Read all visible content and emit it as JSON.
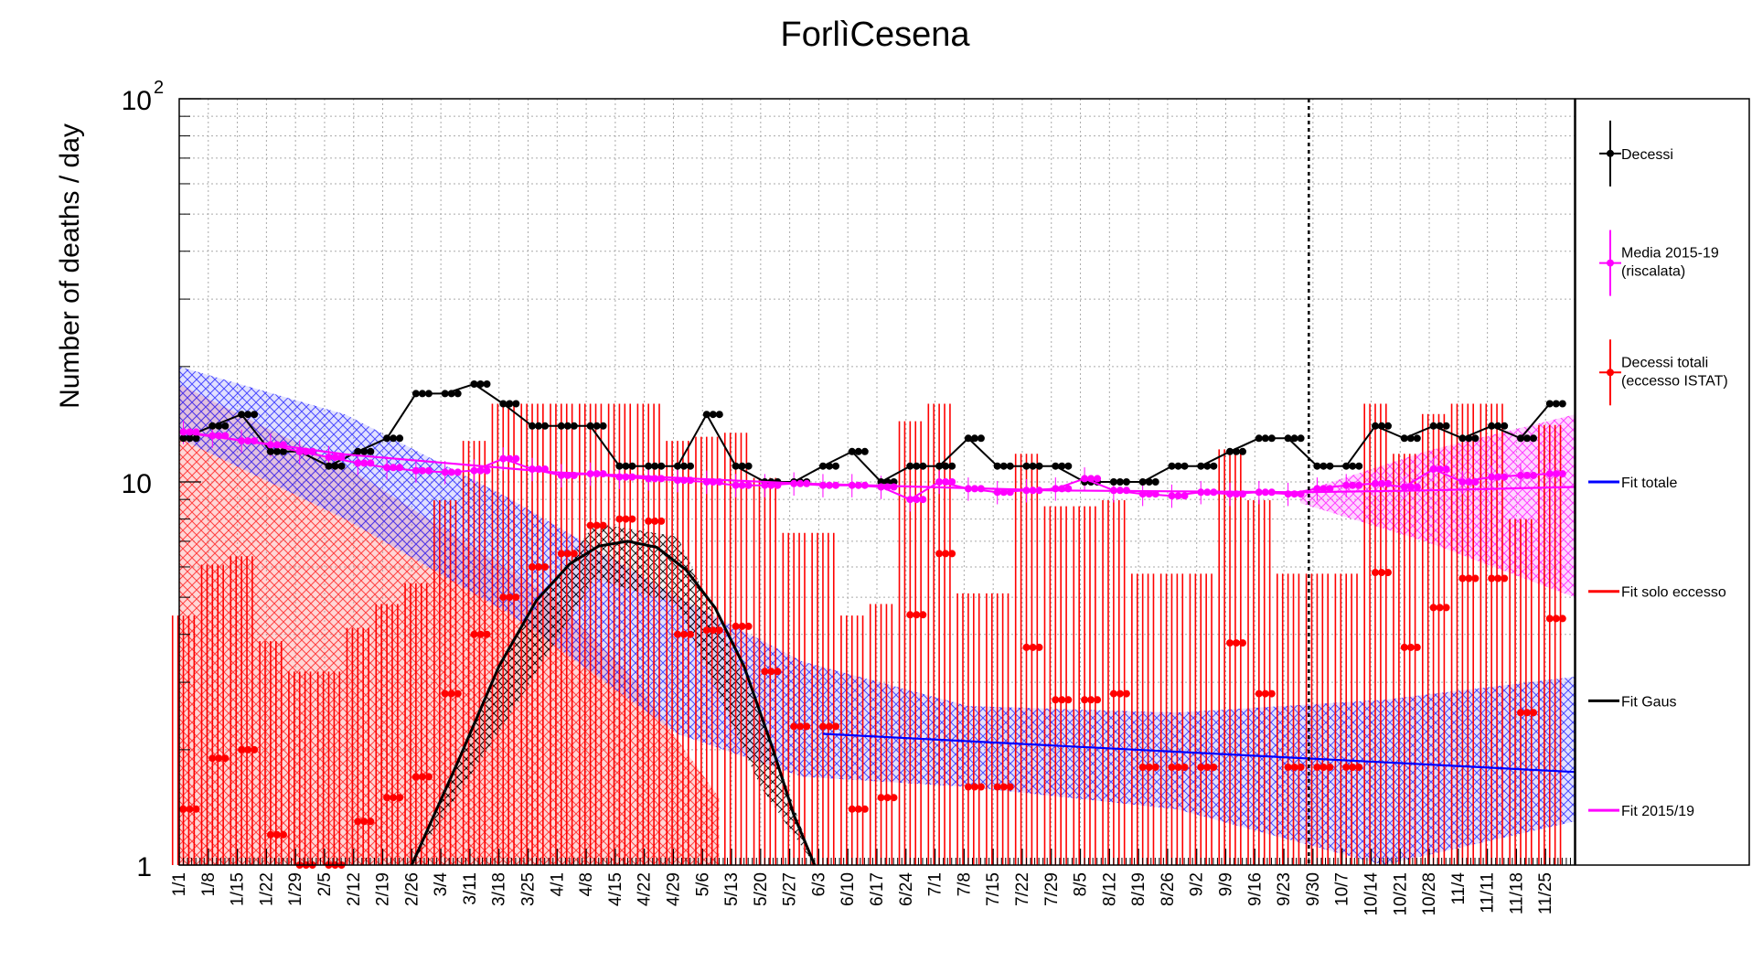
{
  "chart_data": {
    "type": "line",
    "title": "ForlìCesena",
    "ylabel": "Number of deaths / day",
    "xlabel": "",
    "yscale": "log",
    "ylim": [
      1,
      100
    ],
    "y_tick_labels": [
      {
        "base": "10",
        "exp": "2",
        "value": 100
      },
      {
        "base": "10",
        "exp": "",
        "value": 10
      },
      {
        "base": "1",
        "exp": "",
        "value": 1
      }
    ],
    "x_range_days": [
      0,
      336
    ],
    "x_tick_labels": [
      "1/1",
      "1/8",
      "1/15",
      "1/22",
      "1/29",
      "2/5",
      "2/12",
      "2/19",
      "2/26",
      "3/4",
      "3/11",
      "3/18",
      "3/25",
      "4/1",
      "4/8",
      "4/15",
      "4/22",
      "4/29",
      "5/6",
      "5/13",
      "5/20",
      "5/27",
      "6/3",
      "6/10",
      "6/17",
      "6/24",
      "7/1",
      "7/8",
      "7/15",
      "7/22",
      "7/29",
      "8/5",
      "8/12",
      "8/19",
      "8/26",
      "9/2",
      "9/9",
      "9/16",
      "9/23",
      "9/30",
      "10/7",
      "10/14",
      "10/21",
      "10/28",
      "11/4",
      "11/11",
      "11/18",
      "11/25"
    ],
    "grid": true,
    "vertical_marker_label": "9/30",
    "legend_position": "right",
    "legend": [
      {
        "label": "Decessi",
        "color": "#000000",
        "style": "marker"
      },
      {
        "label": "Media 2015-19",
        "label2": "(riscalata)",
        "color": "#ff00ff",
        "style": "marker"
      },
      {
        "label": "Decessi totali",
        "label2": "(eccesso ISTAT)",
        "color": "#ff0000",
        "style": "marker"
      },
      {
        "label": "Fit totale",
        "color": "#0000ff",
        "style": "line"
      },
      {
        "label": "Fit solo eccesso",
        "color": "#ff0000",
        "style": "line"
      },
      {
        "label": "Fit Gaus",
        "color": "#000000",
        "style": "line"
      },
      {
        "label": "Fit 2015/19",
        "color": "#ff00ff",
        "style": "line"
      }
    ],
    "series": [
      {
        "name": "Decessi",
        "color": "#000000",
        "x_day_step": 7,
        "y": [
          13,
          14,
          15,
          12,
          12,
          11,
          12,
          13,
          17,
          17,
          18,
          16,
          14,
          14,
          14,
          11,
          11,
          11,
          15,
          11,
          10,
          10,
          11,
          12,
          10,
          11,
          11,
          13,
          11,
          11,
          11,
          10,
          10,
          10,
          11,
          11,
          12,
          13,
          13,
          11,
          11,
          14,
          13,
          14,
          13,
          14,
          13,
          16
        ]
      },
      {
        "name": "Media 2015-19",
        "color": "#ff00ff",
        "x_day_step": 7,
        "y": [
          13.5,
          13.2,
          12.8,
          12.5,
          12.0,
          11.6,
          11.2,
          10.9,
          10.7,
          10.6,
          10.7,
          11.5,
          10.8,
          10.4,
          10.5,
          10.3,
          10.2,
          10.1,
          10.0,
          9.8,
          9.8,
          9.9,
          9.8,
          9.8,
          9.7,
          9.0,
          10.0,
          9.6,
          9.4,
          9.5,
          9.6,
          10.2,
          9.5,
          9.3,
          9.2,
          9.4,
          9.3,
          9.4,
          9.3,
          9.6,
          9.8,
          9.9,
          9.7,
          10.8,
          10.0,
          10.3,
          10.4,
          10.5
        ]
      },
      {
        "name": "Decessi totali",
        "color": "#ff0000",
        "x_day_step": 7,
        "y": [
          1.4,
          1.9,
          2.0,
          1.2,
          1.0,
          1.0,
          1.3,
          1.5,
          1.7,
          2.8,
          4.0,
          5.0,
          6.0,
          6.5,
          7.7,
          8.0,
          7.9,
          4.0,
          4.1,
          4.2,
          3.2,
          2.3,
          2.3,
          1.4,
          1.5,
          4.5,
          6.5,
          1.6,
          1.6,
          3.7,
          2.7,
          2.7,
          2.8,
          1.8,
          1.8,
          1.8,
          3.8,
          2.8,
          1.8,
          1.8,
          1.8,
          5.8,
          3.7,
          4.7,
          5.6,
          5.6,
          2.5,
          4.4
        ]
      },
      {
        "name": "Fit totale",
        "color": "#0000ff",
        "x_day": [
          155,
          336
        ],
        "y": [
          2.2,
          1.75
        ]
      },
      {
        "name": "Fit Gaus",
        "color": "#000000",
        "x_day": [
          56,
          67,
          77,
          86,
          94,
          101,
          108,
          115,
          122,
          129,
          136,
          143,
          148,
          153
        ],
        "y": [
          1.0,
          1.85,
          3.3,
          4.9,
          6.1,
          6.8,
          7.0,
          6.75,
          5.9,
          4.7,
          3.3,
          2.0,
          1.35,
          1.0
        ]
      },
      {
        "name": "Fit 2015/19",
        "color": "#ff00ff",
        "x_day": [
          0,
          40,
          90,
          150,
          210,
          270,
          300,
          336
        ],
        "y": [
          13.5,
          11.8,
          10.6,
          9.9,
          9.5,
          9.4,
          9.5,
          9.7
        ]
      }
    ]
  }
}
